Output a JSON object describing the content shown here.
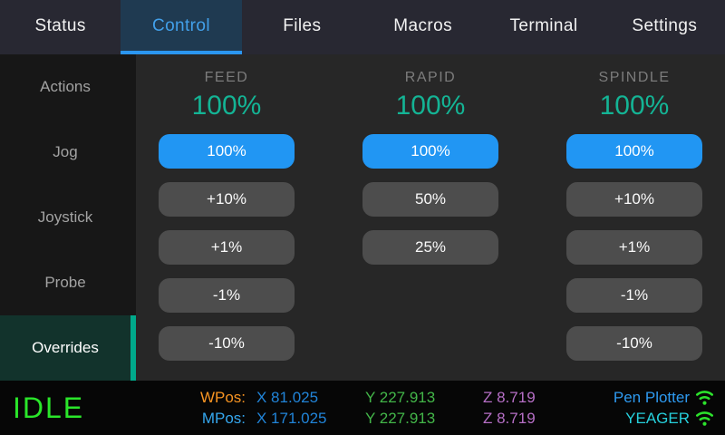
{
  "nav": {
    "tabs": [
      {
        "label": "Status",
        "active": false
      },
      {
        "label": "Control",
        "active": true
      },
      {
        "label": "Files",
        "active": false
      },
      {
        "label": "Macros",
        "active": false
      },
      {
        "label": "Terminal",
        "active": false
      },
      {
        "label": "Settings",
        "active": false
      }
    ]
  },
  "sidebar": {
    "items": [
      {
        "label": "Actions",
        "active": false
      },
      {
        "label": "Jog",
        "active": false
      },
      {
        "label": "Joystick",
        "active": false
      },
      {
        "label": "Probe",
        "active": false
      },
      {
        "label": "Overrides",
        "active": true
      }
    ]
  },
  "overrides": {
    "columns": [
      {
        "id": "feed",
        "label": "FEED",
        "value": "100%",
        "buttons": [
          {
            "label": "100%",
            "active": true
          },
          {
            "label": "+10%",
            "active": false
          },
          {
            "label": "+1%",
            "active": false
          },
          {
            "label": "-1%",
            "active": false
          },
          {
            "label": "-10%",
            "active": false
          }
        ]
      },
      {
        "id": "rapid",
        "label": "RAPID",
        "value": "100%",
        "buttons": [
          {
            "label": "100%",
            "active": true
          },
          {
            "label": "50%",
            "active": false
          },
          {
            "label": "25%",
            "active": false
          }
        ]
      },
      {
        "id": "spindle",
        "label": "SPINDLE",
        "value": "100%",
        "buttons": [
          {
            "label": "100%",
            "active": true
          },
          {
            "label": "+10%",
            "active": false
          },
          {
            "label": "+1%",
            "active": false
          },
          {
            "label": "-1%",
            "active": false
          },
          {
            "label": "-10%",
            "active": false
          }
        ]
      }
    ]
  },
  "statusbar": {
    "state": "IDLE",
    "wpos": {
      "label": "WPos:",
      "x": "X 81.025",
      "y": "Y 227.913",
      "z": "Z 8.719"
    },
    "mpos": {
      "label": "MPos:",
      "x": "X 171.025",
      "y": "Y 227.913",
      "z": "Z 8.719"
    },
    "network": [
      {
        "name": "Pen Plotter",
        "color": "#2e9af0",
        "icon": "wifi-icon"
      },
      {
        "name": "YEAGER",
        "color": "#26d0dc",
        "icon": "wifi-icon"
      }
    ]
  },
  "colors": {
    "accent_teal": "#00a98b",
    "value_teal": "#14b495",
    "active_tab_blue": "#2b96f0",
    "button_blue": "#2196f3",
    "button_gray": "#4d4d4d",
    "state_green": "#2ae62a",
    "wpos_orange": "#f79422",
    "mpos_blue": "#35a7ee",
    "x_blue": "#2184d8",
    "y_green": "#43b649",
    "z_purple": "#b66fc6",
    "wifi_green": "#2ce22c"
  }
}
